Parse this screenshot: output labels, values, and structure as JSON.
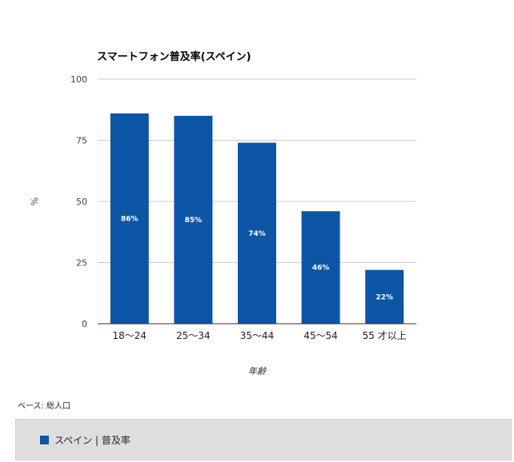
{
  "chart_data": {
    "type": "bar",
    "title": "スマートフォン普及率(スペイン)",
    "xlabel": "年齢",
    "ylabel": "%",
    "ylim": [
      0,
      100
    ],
    "yticks": [
      0,
      25,
      50,
      75,
      100
    ],
    "categories": [
      "18〜24",
      "25〜34",
      "35〜44",
      "45〜54",
      "55 才以上"
    ],
    "series": [
      {
        "name": "スペイン | 普及率",
        "values": [
          86,
          85,
          74,
          46,
          22
        ],
        "labels": [
          "86%",
          "85%",
          "74%",
          "46%",
          "22%"
        ],
        "color": "#0c56a5"
      }
    ],
    "grid": true,
    "legend": "bottom"
  },
  "base_note": "ベース: 総人口",
  "colors": {
    "bar": "#0c56a5",
    "grid": "#cccccc",
    "axis": "#333333",
    "legend_bg": "#dedede"
  }
}
